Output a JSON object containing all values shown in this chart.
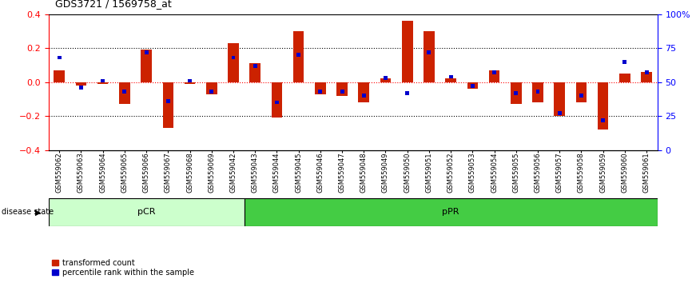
{
  "title": "GDS3721 / 1569758_at",
  "samples": [
    "GSM559062",
    "GSM559063",
    "GSM559064",
    "GSM559065",
    "GSM559066",
    "GSM559067",
    "GSM559068",
    "GSM559069",
    "GSM559042",
    "GSM559043",
    "GSM559044",
    "GSM559045",
    "GSM559046",
    "GSM559047",
    "GSM559048",
    "GSM559049",
    "GSM559050",
    "GSM559051",
    "GSM559052",
    "GSM559053",
    "GSM559054",
    "GSM559055",
    "GSM559056",
    "GSM559057",
    "GSM559058",
    "GSM559059",
    "GSM559060",
    "GSM559061"
  ],
  "transformed_count": [
    0.07,
    -0.02,
    -0.01,
    -0.13,
    0.19,
    -0.27,
    -0.01,
    -0.07,
    0.23,
    0.11,
    -0.21,
    0.3,
    -0.07,
    -0.08,
    -0.12,
    0.02,
    0.36,
    0.3,
    0.02,
    -0.04,
    0.07,
    -0.13,
    -0.12,
    -0.2,
    -0.12,
    -0.28,
    0.05,
    0.06
  ],
  "percentile_rank": [
    0.68,
    0.46,
    0.51,
    0.43,
    0.72,
    0.36,
    0.51,
    0.43,
    0.68,
    0.62,
    0.35,
    0.7,
    0.43,
    0.43,
    0.4,
    0.53,
    0.42,
    0.72,
    0.54,
    0.47,
    0.57,
    0.42,
    0.43,
    0.27,
    0.4,
    0.22,
    0.65,
    0.57
  ],
  "pcr_count": 9,
  "ppr_count": 19,
  "bar_color_red": "#cc2200",
  "bar_color_blue": "#0000cc",
  "pcr_color": "#ccffcc",
  "ppr_color": "#44cc44",
  "ylim_left": [
    -0.4,
    0.4
  ],
  "ylim_right": [
    0,
    1.0
  ],
  "yticks_left": [
    -0.4,
    -0.2,
    0.0,
    0.2,
    0.4
  ],
  "yticks_right_vals": [
    0,
    0.25,
    0.5,
    0.75,
    1.0
  ],
  "yticks_right_labels": [
    "0",
    "25",
    "50",
    "75",
    "100%"
  ],
  "background_color": "#ffffff",
  "bar_width": 0.5,
  "blue_bar_width": 0.18
}
